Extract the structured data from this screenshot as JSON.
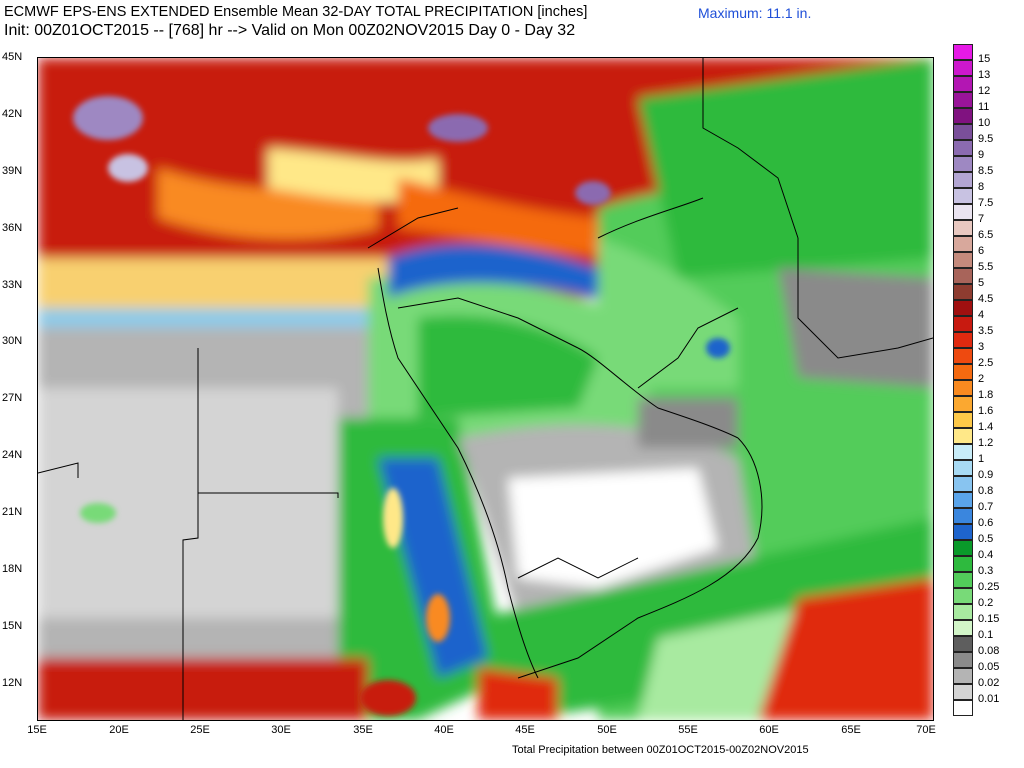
{
  "header": {
    "title": "ECMWF EPS-ENS EXTENDED Ensemble Mean 32-DAY TOTAL PRECIPITATION [inches]",
    "init": "Init: 00Z01OCT2015 -- [768] hr --> Valid on Mon 00Z02NOV2015  Day 0 - Day 32",
    "maximum": "Maximum:  11.1 in."
  },
  "footer": "Total Precipitation between 00Z01OCT2015-00Z02NOV2015",
  "axes": {
    "lat_labels": [
      "45N",
      "42N",
      "39N",
      "36N",
      "33N",
      "30N",
      "27N",
      "24N",
      "21N",
      "18N",
      "15N",
      "12N"
    ],
    "lon_labels": [
      "15E",
      "20E",
      "25E",
      "30E",
      "35E",
      "40E",
      "45E",
      "50E",
      "55E",
      "60E",
      "65E",
      "70E"
    ]
  },
  "legend": {
    "levels": [
      "15",
      "13",
      "12",
      "11",
      "10",
      "9.5",
      "9",
      "8.5",
      "8",
      "7.5",
      "7",
      "6.5",
      "6",
      "5.5",
      "5",
      "4.5",
      "4",
      "3.5",
      "3",
      "2.5",
      "2",
      "1.8",
      "1.6",
      "1.4",
      "1.2",
      "1",
      "0.9",
      "0.8",
      "0.7",
      "0.6",
      "0.5",
      "0.4",
      "0.3",
      "0.25",
      "0.2",
      "0.15",
      "0.1",
      "0.08",
      "0.05",
      "0.02",
      "0.01"
    ],
    "colors": [
      "#e619e6",
      "#cc18cc",
      "#b316b3",
      "#991499",
      "#801280",
      "#7a4f9a",
      "#8b6bb0",
      "#9e88c2",
      "#b3a6d3",
      "#c8c2e2",
      "#eae4f0",
      "#e8c8c0",
      "#d8a89c",
      "#c48a7c",
      "#a8645a",
      "#8e3c30",
      "#a01010",
      "#c81a10",
      "#e02a10",
      "#ee4a10",
      "#f56a10",
      "#f98a20",
      "#fba830",
      "#fdc848",
      "#ffe888",
      "#c8ecf8",
      "#a8daf4",
      "#88c4f0",
      "#5aa4ea",
      "#3a86de",
      "#1e64cc",
      "#0a9a2a",
      "#2eba3e",
      "#52cc5a",
      "#78da78",
      "#a8eaa0",
      "#d2f5c8",
      "#5e5e5e",
      "#8a8a8a",
      "#b4b4b4",
      "#d4d4d4",
      "#ffffff"
    ]
  }
}
